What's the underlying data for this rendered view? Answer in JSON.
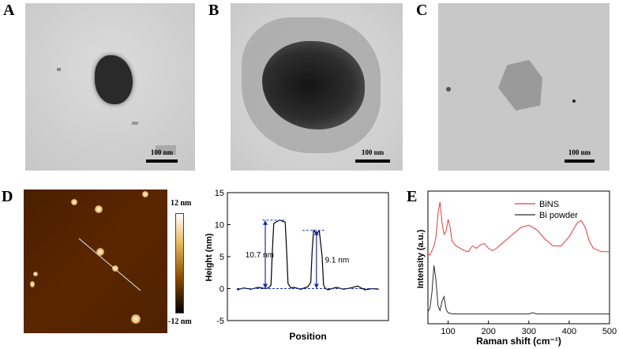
{
  "panels": {
    "A": {
      "letter": "A",
      "scale_label": "100 nm"
    },
    "B": {
      "letter": "B",
      "scale_label": "100 nm"
    },
    "C": {
      "letter": "C",
      "scale_label": "100 nm"
    },
    "D": {
      "letter": "D",
      "colorbar_max": "12 nm",
      "colorbar_min": "-12 nm"
    },
    "E": {
      "letter": "E"
    }
  },
  "chart_data": [
    {
      "type": "line",
      "xlabel": "Position",
      "ylabel": "Height (nm)",
      "ylim": [
        -5,
        15
      ],
      "yticks": [
        "-5",
        "0",
        "5",
        "10",
        "15"
      ],
      "annotations": [
        "10.7 nm",
        "9.1 nm"
      ],
      "peaks": [
        10.7,
        9.1
      ],
      "x": [
        0,
        0.05,
        0.1,
        0.15,
        0.2,
        0.22,
        0.24,
        0.25,
        0.26,
        0.3,
        0.34,
        0.35,
        0.36,
        0.38,
        0.4,
        0.45,
        0.5,
        0.52,
        0.53,
        0.54,
        0.56,
        0.58,
        0.6,
        0.61,
        0.62,
        0.64,
        0.7,
        0.75,
        0.8,
        0.85,
        0.9,
        0.95,
        1.0
      ],
      "y": [
        -0.2,
        0.1,
        -0.1,
        0.2,
        0.0,
        0.1,
        0.5,
        6.0,
        10.2,
        10.7,
        10.4,
        6.0,
        0.8,
        0.1,
        0.2,
        -0.1,
        0.3,
        1.0,
        6.0,
        9.1,
        8.6,
        9.0,
        5.0,
        0.6,
        0.1,
        -0.2,
        0.2,
        -0.1,
        0.1,
        0.4,
        -0.2,
        0.0,
        -0.1
      ],
      "colors": {
        "line": "#000000",
        "annotation": "#1a2fa8"
      }
    },
    {
      "type": "line",
      "xlabel": "Raman shift (cm⁻¹)",
      "ylabel": "Intensity (a.u.)",
      "xlim": [
        50,
        500
      ],
      "xticks": [
        100,
        200,
        300,
        400,
        500
      ],
      "series": [
        {
          "name": "BiNS",
          "color": "#e03c3c",
          "x": [
            50,
            55,
            60,
            65,
            70,
            75,
            80,
            85,
            90,
            95,
            100,
            105,
            110,
            120,
            130,
            140,
            150,
            160,
            170,
            180,
            190,
            200,
            210,
            220,
            240,
            260,
            280,
            300,
            320,
            340,
            360,
            380,
            400,
            410,
            420,
            430,
            440,
            450,
            460,
            480,
            500
          ],
          "y": [
            0.55,
            0.54,
            0.58,
            0.62,
            0.7,
            0.9,
            1.0,
            0.82,
            0.72,
            0.75,
            0.85,
            0.78,
            0.66,
            0.62,
            0.6,
            0.58,
            0.57,
            0.62,
            0.6,
            0.63,
            0.64,
            0.6,
            0.58,
            0.6,
            0.66,
            0.72,
            0.78,
            0.8,
            0.76,
            0.68,
            0.62,
            0.62,
            0.7,
            0.76,
            0.82,
            0.84,
            0.78,
            0.66,
            0.6,
            0.57,
            0.57
          ]
        },
        {
          "name": "Bi powder",
          "color": "#2b2b2b",
          "x": [
            50,
            55,
            60,
            65,
            70,
            75,
            80,
            85,
            90,
            95,
            100,
            110,
            130,
            150,
            200,
            250,
            300,
            310,
            320,
            350,
            400,
            450,
            500
          ],
          "y": [
            0.05,
            0.08,
            0.22,
            0.45,
            0.32,
            0.1,
            0.06,
            0.14,
            0.18,
            0.07,
            0.04,
            0.03,
            0.03,
            0.03,
            0.03,
            0.03,
            0.03,
            0.04,
            0.03,
            0.03,
            0.03,
            0.03,
            0.03
          ]
        }
      ]
    }
  ]
}
